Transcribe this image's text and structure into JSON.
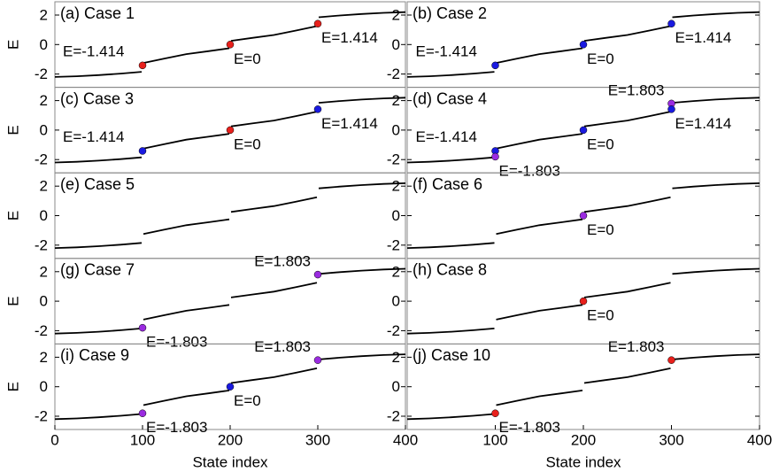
{
  "chart_data": [
    {
      "type": "line",
      "title": "(a) Case 1",
      "ylabel": "E",
      "xlim": [
        0,
        400
      ],
      "ylim": [
        -2.9,
        2.9
      ],
      "yticks": [
        -2,
        0,
        2
      ],
      "color": "#000000",
      "x": [
        0,
        25,
        50,
        75,
        99,
        null,
        101,
        125,
        150,
        175,
        199,
        null,
        201,
        225,
        250,
        275,
        299,
        null,
        301,
        325,
        350,
        375,
        400
      ],
      "values": [
        -2.2,
        -2.15,
        -2.07,
        -1.97,
        -1.85,
        null,
        -1.25,
        -0.95,
        -0.65,
        -0.45,
        -0.25,
        null,
        0.25,
        0.45,
        0.65,
        0.95,
        1.25,
        null,
        1.85,
        1.97,
        2.07,
        2.15,
        2.2
      ],
      "points": [
        {
          "x": 100,
          "y": -1.414,
          "label": "E=-1.414",
          "color": "#e8201c"
        },
        {
          "x": 200,
          "y": 0,
          "label": "E=0",
          "color": "#e8201c"
        },
        {
          "x": 300,
          "y": 1.414,
          "label": "E=1.414",
          "color": "#e8201c"
        }
      ]
    },
    {
      "type": "line",
      "title": "(b) Case 2",
      "xlim": [
        0,
        400
      ],
      "ylim": [
        -2.9,
        2.9
      ],
      "yticks": [
        -2,
        0,
        2
      ],
      "color": "#000000",
      "x": [
        0,
        25,
        50,
        75,
        99,
        null,
        101,
        125,
        150,
        175,
        199,
        null,
        201,
        225,
        250,
        275,
        299,
        null,
        301,
        325,
        350,
        375,
        400
      ],
      "values": [
        -2.2,
        -2.15,
        -2.07,
        -1.97,
        -1.85,
        null,
        -1.25,
        -0.95,
        -0.65,
        -0.45,
        -0.25,
        null,
        0.25,
        0.45,
        0.65,
        0.95,
        1.25,
        null,
        1.85,
        1.97,
        2.07,
        2.15,
        2.2
      ],
      "points": [
        {
          "x": 100,
          "y": -1.414,
          "label": "E=-1.414",
          "color": "#1a1ae0"
        },
        {
          "x": 200,
          "y": 0,
          "label": "E=0",
          "color": "#1a1ae0"
        },
        {
          "x": 300,
          "y": 1.414,
          "label": "E=1.414",
          "color": "#1a1ae0"
        }
      ]
    },
    {
      "type": "line",
      "title": "(c) Case 3",
      "ylabel": "E",
      "xlim": [
        0,
        400
      ],
      "ylim": [
        -2.9,
        2.9
      ],
      "yticks": [
        -2,
        0,
        2
      ],
      "color": "#000000",
      "x": [
        0,
        25,
        50,
        75,
        99,
        null,
        101,
        125,
        150,
        175,
        199,
        null,
        201,
        225,
        250,
        275,
        299,
        null,
        301,
        325,
        350,
        375,
        400
      ],
      "values": [
        -2.2,
        -2.15,
        -2.07,
        -1.97,
        -1.85,
        null,
        -1.25,
        -0.95,
        -0.65,
        -0.45,
        -0.25,
        null,
        0.25,
        0.45,
        0.65,
        0.95,
        1.25,
        null,
        1.85,
        1.97,
        2.07,
        2.15,
        2.2
      ],
      "points": [
        {
          "x": 100,
          "y": -1.414,
          "label": "E=-1.414",
          "color": "#1a1ae0"
        },
        {
          "x": 200,
          "y": 0,
          "label": "E=0",
          "color": "#e8201c"
        },
        {
          "x": 300,
          "y": 1.414,
          "label": "E=1.414",
          "color": "#1a1ae0"
        }
      ]
    },
    {
      "type": "line",
      "title": "(d) Case 4",
      "xlim": [
        0,
        400
      ],
      "ylim": [
        -2.9,
        2.9
      ],
      "yticks": [
        -2,
        0,
        2
      ],
      "color": "#000000",
      "x": [
        0,
        25,
        50,
        75,
        99,
        null,
        101,
        125,
        150,
        175,
        199,
        null,
        201,
        225,
        250,
        275,
        299,
        null,
        301,
        325,
        350,
        375,
        400
      ],
      "values": [
        -2.2,
        -2.15,
        -2.07,
        -1.97,
        -1.85,
        null,
        -1.25,
        -0.95,
        -0.65,
        -0.45,
        -0.25,
        null,
        0.25,
        0.45,
        0.65,
        0.95,
        1.25,
        null,
        1.85,
        1.97,
        2.07,
        2.15,
        2.2
      ],
      "points": [
        {
          "x": 100,
          "y": -1.414,
          "label": "E=-1.414",
          "color": "#1a1ae0"
        },
        {
          "x": 100,
          "y": -1.803,
          "label": "E=-1.803",
          "color": "#9a2be0"
        },
        {
          "x": 200,
          "y": 0,
          "label": "E=0",
          "color": "#1a1ae0"
        },
        {
          "x": 300,
          "y": 1.803,
          "label": "E=1.803",
          "color": "#9a2be0"
        },
        {
          "x": 300,
          "y": 1.414,
          "label": "E=1.414",
          "color": "#1a1ae0"
        }
      ]
    },
    {
      "type": "line",
      "title": "(e) Case 5",
      "ylabel": "E",
      "xlim": [
        0,
        400
      ],
      "ylim": [
        -2.9,
        2.9
      ],
      "yticks": [
        -2,
        0,
        2
      ],
      "color": "#000000",
      "x": [
        0,
        25,
        50,
        75,
        99,
        null,
        101,
        125,
        150,
        175,
        199,
        null,
        201,
        225,
        250,
        275,
        299,
        null,
        301,
        325,
        350,
        375,
        400
      ],
      "values": [
        -2.2,
        -2.15,
        -2.07,
        -1.97,
        -1.85,
        null,
        -1.25,
        -0.95,
        -0.65,
        -0.45,
        -0.25,
        null,
        0.25,
        0.45,
        0.65,
        0.95,
        1.25,
        null,
        1.85,
        1.97,
        2.07,
        2.15,
        2.2
      ],
      "points": []
    },
    {
      "type": "line",
      "title": "(f) Case 6",
      "xlim": [
        0,
        400
      ],
      "ylim": [
        -2.9,
        2.9
      ],
      "yticks": [
        -2,
        0,
        2
      ],
      "color": "#000000",
      "x": [
        0,
        25,
        50,
        75,
        99,
        null,
        101,
        125,
        150,
        175,
        199,
        null,
        201,
        225,
        250,
        275,
        299,
        null,
        301,
        325,
        350,
        375,
        400
      ],
      "values": [
        -2.2,
        -2.15,
        -2.07,
        -1.97,
        -1.85,
        null,
        -1.25,
        -0.95,
        -0.65,
        -0.45,
        -0.25,
        null,
        0.25,
        0.45,
        0.65,
        0.95,
        1.25,
        null,
        1.85,
        1.97,
        2.07,
        2.15,
        2.2
      ],
      "points": [
        {
          "x": 200,
          "y": 0,
          "label": "E=0",
          "color": "#9a2be0"
        }
      ]
    },
    {
      "type": "line",
      "title": "(g) Case 7",
      "ylabel": "E",
      "xlim": [
        0,
        400
      ],
      "ylim": [
        -2.9,
        2.9
      ],
      "yticks": [
        -2,
        0,
        2
      ],
      "color": "#000000",
      "x": [
        0,
        25,
        50,
        75,
        99,
        null,
        101,
        125,
        150,
        175,
        199,
        null,
        201,
        225,
        250,
        275,
        299,
        null,
        301,
        325,
        350,
        375,
        400
      ],
      "values": [
        -2.2,
        -2.15,
        -2.07,
        -1.97,
        -1.85,
        null,
        -1.25,
        -0.95,
        -0.65,
        -0.45,
        -0.25,
        null,
        0.25,
        0.45,
        0.65,
        0.95,
        1.25,
        null,
        1.85,
        1.97,
        2.07,
        2.15,
        2.2
      ],
      "points": [
        {
          "x": 100,
          "y": -1.803,
          "label": "E=-1.803",
          "color": "#9a2be0"
        },
        {
          "x": 300,
          "y": 1.803,
          "label": "E=1.803",
          "color": "#9a2be0"
        }
      ]
    },
    {
      "type": "line",
      "title": "(h) Case 8",
      "xlim": [
        0,
        400
      ],
      "ylim": [
        -2.9,
        2.9
      ],
      "yticks": [
        -2,
        0,
        2
      ],
      "color": "#000000",
      "x": [
        0,
        25,
        50,
        75,
        99,
        null,
        101,
        125,
        150,
        175,
        199,
        null,
        201,
        225,
        250,
        275,
        299,
        null,
        301,
        325,
        350,
        375,
        400
      ],
      "values": [
        -2.2,
        -2.15,
        -2.07,
        -1.97,
        -1.85,
        null,
        -1.25,
        -0.95,
        -0.65,
        -0.45,
        -0.25,
        null,
        0.25,
        0.45,
        0.65,
        0.95,
        1.25,
        null,
        1.85,
        1.97,
        2.07,
        2.15,
        2.2
      ],
      "points": [
        {
          "x": 200,
          "y": 0,
          "label": "E=0",
          "color": "#e8201c"
        }
      ]
    },
    {
      "type": "line",
      "title": "(i) Case 9",
      "ylabel": "E",
      "xlabel": "State index",
      "xlim": [
        0,
        400
      ],
      "xticks": [
        0,
        100,
        200,
        300,
        400
      ],
      "ylim": [
        -2.9,
        2.9
      ],
      "yticks": [
        -2,
        0,
        2
      ],
      "color": "#000000",
      "x": [
        0,
        25,
        50,
        75,
        99,
        null,
        101,
        125,
        150,
        175,
        199,
        null,
        201,
        225,
        250,
        275,
        299,
        null,
        301,
        325,
        350,
        375,
        400
      ],
      "values": [
        -2.2,
        -2.15,
        -2.07,
        -1.97,
        -1.85,
        null,
        -1.25,
        -0.95,
        -0.65,
        -0.45,
        -0.25,
        null,
        0.25,
        0.45,
        0.65,
        0.95,
        1.25,
        null,
        1.85,
        1.97,
        2.07,
        2.15,
        2.2
      ],
      "points": [
        {
          "x": 100,
          "y": -1.803,
          "label": "E=-1.803",
          "color": "#9a2be0"
        },
        {
          "x": 200,
          "y": 0,
          "label": "E=0",
          "color": "#1a1ae0"
        },
        {
          "x": 300,
          "y": 1.803,
          "label": "E=1.803",
          "color": "#9a2be0"
        }
      ]
    },
    {
      "type": "line",
      "title": "(j) Case 10",
      "xlabel": "State index",
      "xlim": [
        0,
        400
      ],
      "xticks": [
        100,
        200,
        300,
        400
      ],
      "ylim": [
        -2.9,
        2.9
      ],
      "yticks": [
        -2,
        0,
        2
      ],
      "color": "#000000",
      "x": [
        0,
        25,
        50,
        75,
        99,
        null,
        101,
        125,
        150,
        175,
        199,
        null,
        201,
        225,
        250,
        275,
        299,
        null,
        301,
        325,
        350,
        375,
        400
      ],
      "values": [
        -2.2,
        -2.15,
        -2.07,
        -1.97,
        -1.85,
        null,
        -1.25,
        -0.95,
        -0.65,
        -0.45,
        -0.25,
        null,
        0.25,
        0.45,
        0.65,
        0.95,
        1.25,
        null,
        1.85,
        1.97,
        2.07,
        2.15,
        2.2
      ],
      "points": [
        {
          "x": 100,
          "y": -1.803,
          "label": "E=-1.803",
          "color": "#e8201c"
        },
        {
          "x": 300,
          "y": 1.803,
          "label": "E=1.803",
          "color": "#e8201c"
        }
      ]
    }
  ]
}
